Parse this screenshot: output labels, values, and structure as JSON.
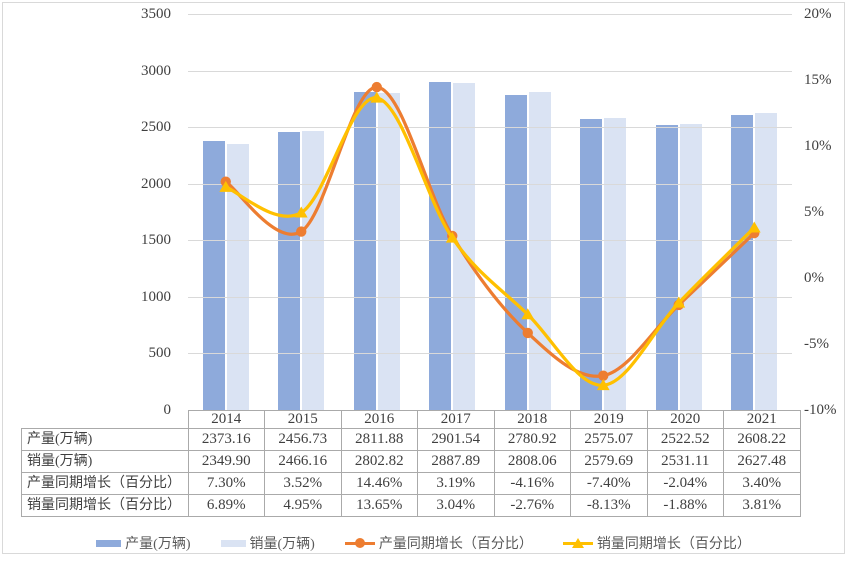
{
  "chart_data": {
    "type": "bar+line",
    "categories": [
      "2014",
      "2015",
      "2016",
      "2017",
      "2018",
      "2019",
      "2020",
      "2021"
    ],
    "series": [
      {
        "name": "产量(万辆)",
        "type": "bar",
        "axis": "left",
        "color": "#8EAADB",
        "values": [
          2373.16,
          2456.73,
          2811.88,
          2901.54,
          2780.92,
          2575.07,
          2522.52,
          2608.22
        ]
      },
      {
        "name": "销量(万辆)",
        "type": "bar",
        "axis": "left",
        "color": "#DAE3F3",
        "values": [
          2349.9,
          2466.16,
          2802.82,
          2887.89,
          2808.06,
          2579.69,
          2531.11,
          2627.48
        ]
      },
      {
        "name": "产量同期增长（百分比）",
        "type": "line",
        "axis": "right",
        "marker": "circle",
        "color": "#ED7D31",
        "values": [
          7.3,
          3.52,
          14.46,
          3.19,
          -4.16,
          -7.4,
          -2.04,
          3.4
        ]
      },
      {
        "name": "销量同期增长（百分比）",
        "type": "line",
        "axis": "right",
        "marker": "triangle",
        "color": "#FFC000",
        "values": [
          6.89,
          4.95,
          13.65,
          3.04,
          -2.76,
          -8.13,
          -1.88,
          3.81
        ]
      }
    ],
    "left_axis": {
      "min": 0,
      "max": 3500,
      "step": 500,
      "ticks": [
        "3500",
        "3000",
        "2500",
        "2000",
        "1500",
        "1000",
        "500",
        "0"
      ]
    },
    "right_axis": {
      "min": -10,
      "max": 20,
      "step": 5,
      "ticks": [
        "20%",
        "15%",
        "10%",
        "5%",
        "0%",
        "-5%",
        "-10%"
      ]
    },
    "grid": true,
    "legend_position": "bottom",
    "title": "",
    "xlabel": "",
    "ylabel": ""
  },
  "table": {
    "columns": [
      "2014",
      "2015",
      "2016",
      "2017",
      "2018",
      "2019",
      "2020",
      "2021"
    ],
    "rows": [
      {
        "label": "产量(万辆)",
        "cells": [
          "2373.16",
          "2456.73",
          "2811.88",
          "2901.54",
          "2780.92",
          "2575.07",
          "2522.52",
          "2608.22"
        ]
      },
      {
        "label": "销量(万辆)",
        "cells": [
          "2349.90",
          "2466.16",
          "2802.82",
          "2887.89",
          "2808.06",
          "2579.69",
          "2531.11",
          "2627.48"
        ]
      },
      {
        "label": "产量同期增长（百分比）",
        "cells": [
          "7.30%",
          "3.52%",
          "14.46%",
          "3.19%",
          "-4.16%",
          "-7.40%",
          "-2.04%",
          "3.40%"
        ]
      },
      {
        "label": "销量同期增长（百分比）",
        "cells": [
          "6.89%",
          "4.95%",
          "13.65%",
          "3.04%",
          "-2.76%",
          "-8.13%",
          "-1.88%",
          "3.81%"
        ]
      }
    ]
  },
  "legend": {
    "items": [
      {
        "label": "产量(万辆)",
        "swatch": "bar",
        "color": "#8EAADB"
      },
      {
        "label": "销量(万辆)",
        "swatch": "bar",
        "color": "#DAE3F3"
      },
      {
        "label": "产量同期增长（百分比）",
        "swatch": "line-circle",
        "color": "#ED7D31"
      },
      {
        "label": "销量同期增长（百分比）",
        "swatch": "line-triangle",
        "color": "#FFC000"
      }
    ]
  },
  "colors": {
    "grid": "#d9d9d9",
    "table_border": "#aaaaaa",
    "text": "#3f3f3f",
    "frame": "#d9d9d9"
  }
}
